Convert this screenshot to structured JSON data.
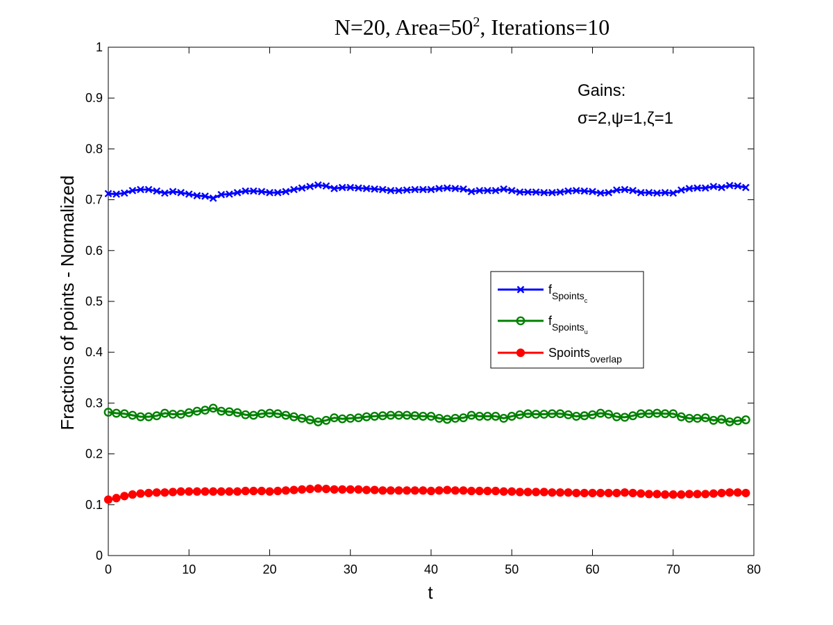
{
  "chart_data": {
    "type": "line",
    "title": "N=20, Area=50², Iterations=10",
    "xlabel": "t",
    "ylabel": "Fractions of points - Normalized",
    "xlim": [
      0,
      80
    ],
    "ylim": [
      0,
      1
    ],
    "xticks": [
      0,
      10,
      20,
      30,
      40,
      50,
      60,
      70,
      80
    ],
    "yticks": [
      0,
      0.1,
      0.2,
      0.3,
      0.4,
      0.5,
      0.6,
      0.7,
      0.8,
      0.9,
      1
    ],
    "grid": false,
    "legend_position": "center-right",
    "annotation": {
      "line1": "Gains:",
      "line2": "σ=2,ψ=1,ζ=1"
    },
    "x": [
      0,
      1,
      2,
      3,
      4,
      5,
      6,
      7,
      8,
      9,
      10,
      11,
      12,
      13,
      14,
      15,
      16,
      17,
      18,
      19,
      20,
      21,
      22,
      23,
      24,
      25,
      26,
      27,
      28,
      29,
      30,
      31,
      32,
      33,
      34,
      35,
      36,
      37,
      38,
      39,
      40,
      41,
      42,
      43,
      44,
      45,
      46,
      47,
      48,
      49,
      50,
      51,
      52,
      53,
      54,
      55,
      56,
      57,
      58,
      59,
      60,
      61,
      62,
      63,
      64,
      65,
      66,
      67,
      68,
      69,
      70,
      71,
      72,
      73,
      74,
      75,
      76,
      77,
      78,
      79
    ],
    "series": [
      {
        "name_main": "f",
        "name_sub": "Spoints",
        "name_subsub": "c",
        "color": "#0000ff",
        "marker": "x",
        "values": [
          0.712,
          0.711,
          0.713,
          0.718,
          0.72,
          0.72,
          0.717,
          0.713,
          0.716,
          0.714,
          0.711,
          0.708,
          0.707,
          0.703,
          0.71,
          0.711,
          0.714,
          0.717,
          0.717,
          0.716,
          0.714,
          0.714,
          0.716,
          0.72,
          0.723,
          0.726,
          0.729,
          0.727,
          0.722,
          0.724,
          0.724,
          0.723,
          0.722,
          0.721,
          0.72,
          0.718,
          0.718,
          0.719,
          0.72,
          0.72,
          0.72,
          0.722,
          0.723,
          0.722,
          0.721,
          0.716,
          0.718,
          0.718,
          0.718,
          0.721,
          0.718,
          0.715,
          0.715,
          0.715,
          0.714,
          0.714,
          0.715,
          0.717,
          0.718,
          0.717,
          0.716,
          0.713,
          0.714,
          0.719,
          0.72,
          0.718,
          0.714,
          0.714,
          0.713,
          0.714,
          0.713,
          0.719,
          0.722,
          0.723,
          0.723,
          0.726,
          0.724,
          0.728,
          0.727,
          0.724
        ]
      },
      {
        "name_main": "f",
        "name_sub": "Spoints",
        "name_subsub": "u",
        "color": "#008000",
        "marker": "o",
        "values": [
          0.282,
          0.28,
          0.279,
          0.276,
          0.273,
          0.273,
          0.275,
          0.28,
          0.278,
          0.278,
          0.281,
          0.284,
          0.286,
          0.29,
          0.284,
          0.283,
          0.281,
          0.277,
          0.276,
          0.279,
          0.28,
          0.279,
          0.276,
          0.273,
          0.27,
          0.267,
          0.263,
          0.266,
          0.271,
          0.269,
          0.27,
          0.271,
          0.273,
          0.274,
          0.275,
          0.276,
          0.276,
          0.276,
          0.275,
          0.274,
          0.274,
          0.27,
          0.268,
          0.27,
          0.271,
          0.276,
          0.274,
          0.274,
          0.274,
          0.27,
          0.274,
          0.277,
          0.279,
          0.278,
          0.278,
          0.279,
          0.279,
          0.277,
          0.274,
          0.275,
          0.277,
          0.28,
          0.278,
          0.273,
          0.272,
          0.275,
          0.279,
          0.279,
          0.28,
          0.279,
          0.279,
          0.273,
          0.27,
          0.27,
          0.271,
          0.266,
          0.268,
          0.263,
          0.265,
          0.267
        ]
      },
      {
        "name_main": "Spoints",
        "name_sub": "overlap",
        "name_subsub": "",
        "color": "#ff0000",
        "marker": "filled-circle",
        "values": [
          0.11,
          0.113,
          0.117,
          0.12,
          0.122,
          0.123,
          0.124,
          0.124,
          0.125,
          0.126,
          0.126,
          0.126,
          0.126,
          0.126,
          0.126,
          0.126,
          0.126,
          0.127,
          0.127,
          0.127,
          0.126,
          0.127,
          0.128,
          0.129,
          0.13,
          0.131,
          0.132,
          0.131,
          0.13,
          0.13,
          0.13,
          0.13,
          0.129,
          0.129,
          0.128,
          0.128,
          0.128,
          0.128,
          0.128,
          0.128,
          0.127,
          0.128,
          0.129,
          0.128,
          0.128,
          0.127,
          0.127,
          0.127,
          0.127,
          0.126,
          0.126,
          0.125,
          0.125,
          0.125,
          0.125,
          0.124,
          0.124,
          0.124,
          0.123,
          0.123,
          0.123,
          0.123,
          0.123,
          0.123,
          0.124,
          0.123,
          0.122,
          0.121,
          0.121,
          0.12,
          0.12,
          0.12,
          0.121,
          0.121,
          0.121,
          0.122,
          0.123,
          0.124,
          0.124,
          0.123
        ]
      }
    ]
  }
}
